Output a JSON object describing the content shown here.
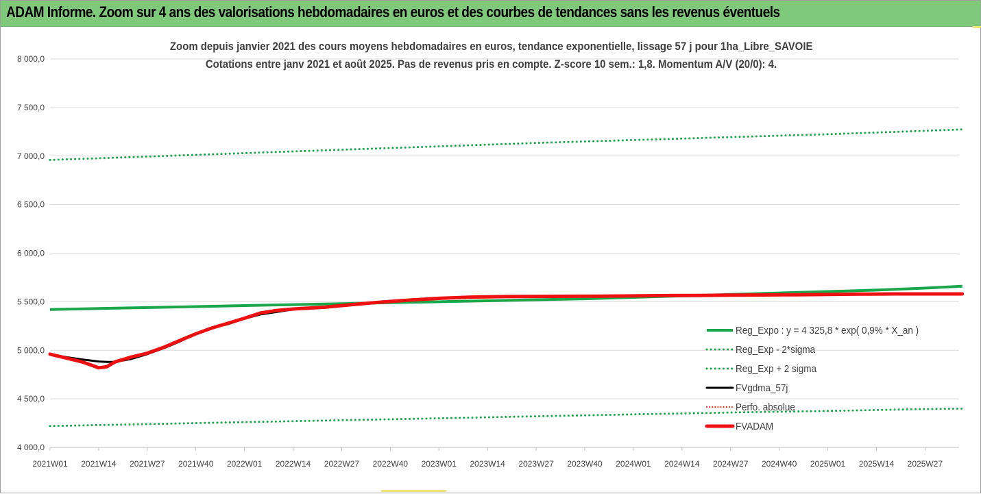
{
  "banner": {
    "title": "ADAM Informe. Zoom sur 4 ans des valorisations hebdomadaires en euros et des courbes de tendances sans les revenus éventuels"
  },
  "colors": {
    "banner_bg": "#7fc97a",
    "green": "#1aa64a",
    "black": "#000000",
    "red": "#ee1111",
    "grid": "#d9d9d9",
    "axis_text": "#404040"
  },
  "chart_data": {
    "type": "line",
    "title": "Zoom depuis janvier 2021 des cours moyens hebdomadaires en euros, tendance exponentielle, lissage 57 j pour 1ha_Libre_SAVOIE",
    "subtitle": "Cotations entre janv 2021 et août 2025.  Pas de revenus pris en compte. Z-score 10 sem.: 1,8. Momentum A/V (20/0): 4.",
    "xlabel": "",
    "ylabel": "",
    "ylim": [
      4000,
      8000
    ],
    "yticks": [
      4000,
      4500,
      5000,
      5500,
      6000,
      6500,
      7000,
      7500,
      8000
    ],
    "ytick_labels": [
      "4 000,0",
      "4 500,0",
      "5 000,0",
      "5 500,0",
      "6 000,0",
      "6 500,0",
      "7 000,0",
      "7 500,0",
      "8 000,0"
    ],
    "x_categories": [
      "2021W01",
      "2021W14",
      "2021W27",
      "2021W40",
      "2022W01",
      "2022W14",
      "2022W27",
      "2022W40",
      "2023W01",
      "2023W14",
      "2023W27",
      "2023W40",
      "2024W01",
      "2024W14",
      "2024W27",
      "2024W40",
      "2025W01",
      "2025W14",
      "2025W27"
    ],
    "grid": true,
    "legend_position": "right",
    "series": [
      {
        "name": "Reg_Expo : y = 4 325,8 * exp( 0,9% *  X_an )",
        "style": "solid",
        "color": "#1aa64a",
        "x": [
          0,
          3,
          6,
          9,
          12,
          15,
          18,
          21,
          24,
          27,
          30,
          33,
          36,
          39,
          42,
          45,
          48,
          51,
          54,
          56.3
        ],
        "values": [
          5420,
          5430,
          5440,
          5450,
          5460,
          5470,
          5480,
          5490,
          5500,
          5510,
          5520,
          5530,
          5545,
          5560,
          5575,
          5590,
          5605,
          5620,
          5640,
          5660
        ]
      },
      {
        "name": "Reg_Exp - 2*sigma",
        "style": "dotted",
        "color": "#1aa64a",
        "x": [
          0,
          6,
          12,
          18,
          24,
          30,
          36,
          42,
          48,
          54,
          56.3
        ],
        "values": [
          4220,
          4240,
          4260,
          4280,
          4300,
          4320,
          4340,
          4360,
          4375,
          4395,
          4400
        ]
      },
      {
        "name": "Reg_Exp + 2 sigma",
        "style": "dotted",
        "color": "#1aa64a",
        "x": [
          0,
          6,
          12,
          18,
          24,
          30,
          36,
          42,
          48,
          54,
          56.3
        ],
        "values": [
          6960,
          6995,
          7030,
          7065,
          7100,
          7135,
          7165,
          7195,
          7225,
          7260,
          7275
        ]
      },
      {
        "name": "FVgdma_57j",
        "style": "solid",
        "color": "#000000",
        "x": [
          0,
          1,
          2,
          2.5,
          3,
          3.5,
          4,
          5,
          6,
          7,
          8,
          9,
          10,
          11,
          12,
          13,
          14,
          15,
          16,
          17,
          18,
          19,
          20,
          22,
          24,
          26,
          28,
          30,
          32,
          34,
          36,
          38,
          40,
          42,
          44,
          46,
          48,
          50,
          52,
          54,
          56.3
        ],
        "values": [
          4960,
          4930,
          4905,
          4895,
          4885,
          4880,
          4880,
          4910,
          4960,
          5020,
          5090,
          5170,
          5230,
          5270,
          5325,
          5370,
          5395,
          5420,
          5430,
          5440,
          5455,
          5475,
          5490,
          5510,
          5530,
          5545,
          5552,
          5555,
          5555,
          5556,
          5558,
          5560,
          5565,
          5570,
          5572,
          5574,
          5575,
          5576,
          5577,
          5580,
          5580
        ]
      },
      {
        "name": "Perfo. absolue",
        "style": "dotted",
        "color": "#ee1111",
        "x": [],
        "values": []
      },
      {
        "name": "FVADAM",
        "style": "solid",
        "color": "#ee1111",
        "x": [
          0,
          1,
          2,
          2.5,
          3,
          3.5,
          4,
          5,
          6,
          7,
          8,
          9,
          10,
          11,
          12,
          13,
          14,
          15,
          16,
          17,
          18,
          19,
          20,
          22,
          24,
          26,
          28,
          30,
          32,
          34,
          36,
          38,
          40,
          42,
          44,
          46,
          48,
          50,
          52,
          54,
          56.3
        ],
        "values": [
          4960,
          4920,
          4880,
          4850,
          4820,
          4830,
          4880,
          4930,
          4970,
          5030,
          5100,
          5170,
          5230,
          5280,
          5330,
          5385,
          5410,
          5425,
          5435,
          5445,
          5460,
          5475,
          5490,
          5515,
          5535,
          5548,
          5553,
          5555,
          5556,
          5558,
          5560,
          5563,
          5565,
          5568,
          5570,
          5572,
          5575,
          5578,
          5580,
          5580,
          5580
        ]
      }
    ]
  }
}
